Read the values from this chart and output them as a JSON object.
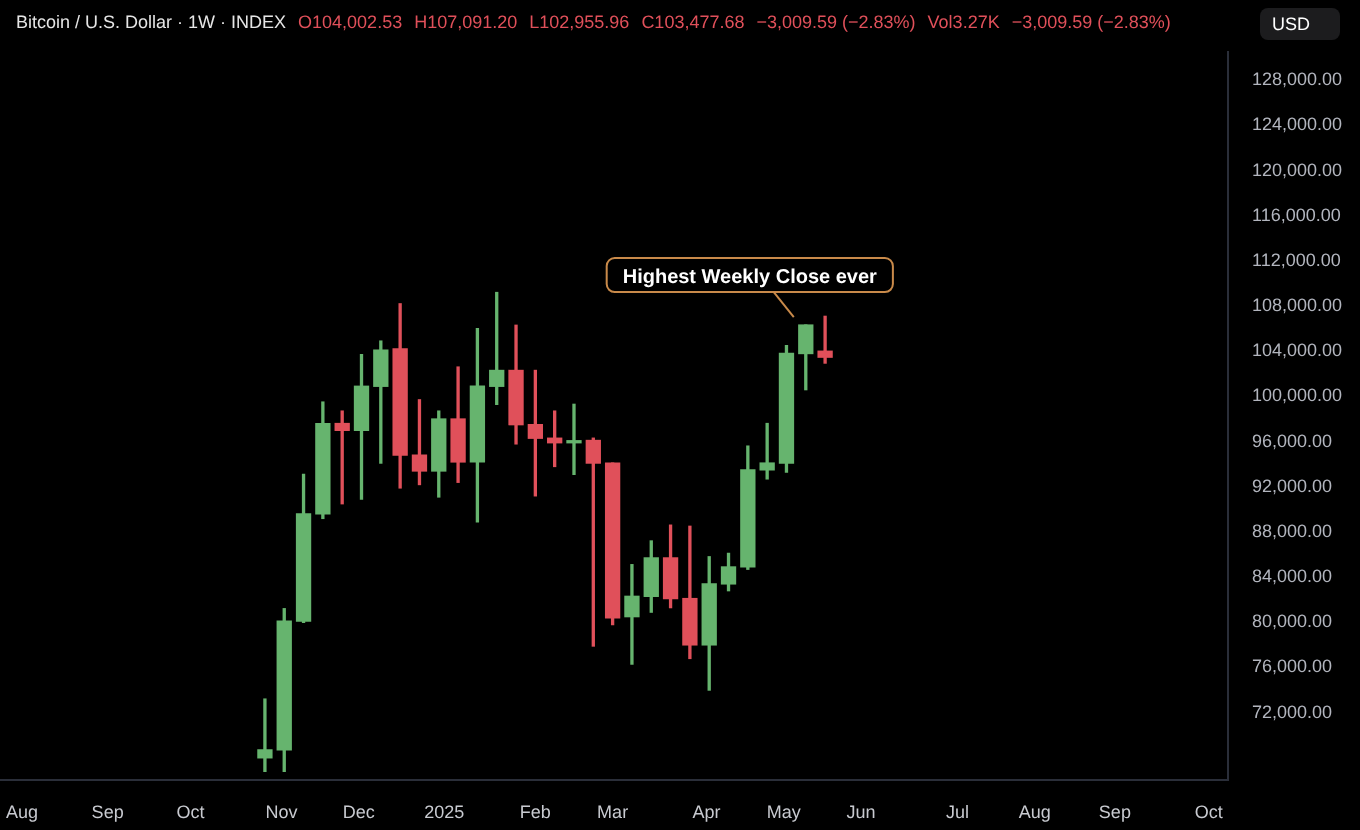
{
  "chart_data": {
    "type": "candlestick",
    "title": "Bitcoin / U.S. Dollar · 1W · INDEX",
    "ylabel": "USD",
    "annotations": [
      "O104,002.53",
      "H107,091.20",
      "L102,955.96",
      "C103,477.68",
      "−3,009.59 (−2.83%)",
      "Vol3.27K",
      "−3,009.59 (−2.83%)",
      {
        "text": "Highest Weekly Close ever",
        "x": "2025-05-12",
        "y": 106320
      }
    ],
    "x": [
      "2024-10-28",
      "2024-11-04",
      "2024-11-11",
      "2024-11-18",
      "2024-11-25",
      "2024-12-02",
      "2024-12-09",
      "2024-12-16",
      "2024-12-23",
      "2024-12-30",
      "2025-01-06",
      "2025-01-13",
      "2025-01-20",
      "2025-01-27",
      "2025-02-03",
      "2025-02-10",
      "2025-02-17",
      "2025-02-24",
      "2025-03-03",
      "2025-03-10",
      "2025-03-17",
      "2025-03-24",
      "2025-03-31",
      "2025-04-07",
      "2025-04-14",
      "2025-04-21",
      "2025-04-28",
      "2025-05-05",
      "2025-05-12",
      "2025-05-19"
    ],
    "ohlc": [
      [
        68000,
        73200,
        66800,
        68700
      ],
      [
        68700,
        81200,
        66800,
        80100
      ],
      [
        80100,
        93100,
        80000,
        89600
      ],
      [
        89600,
        99500,
        89200,
        97600
      ],
      [
        97600,
        98700,
        90500,
        97000
      ],
      [
        97000,
        103700,
        90900,
        100900
      ],
      [
        100900,
        104900,
        94100,
        104100
      ],
      [
        104200,
        108200,
        91900,
        94800
      ],
      [
        94800,
        99700,
        92200,
        93400
      ],
      [
        93400,
        98700,
        91100,
        98000
      ],
      [
        98000,
        102600,
        92400,
        94200
      ],
      [
        94200,
        106000,
        88900,
        100900
      ],
      [
        100900,
        109200,
        99300,
        102300
      ],
      [
        102300,
        106300,
        95800,
        97500
      ],
      [
        97500,
        102300,
        91200,
        96300
      ],
      [
        96300,
        98700,
        93800,
        95900
      ],
      [
        95900,
        99300,
        93100,
        96000
      ],
      [
        96100,
        96300,
        77900,
        94100
      ],
      [
        94100,
        94100,
        79800,
        80400
      ],
      [
        80500,
        85100,
        76300,
        82300
      ],
      [
        82300,
        87200,
        80900,
        85700
      ],
      [
        85700,
        88600,
        81300,
        82100
      ],
      [
        82100,
        88500,
        76800,
        78000
      ],
      [
        78000,
        85800,
        74000,
        83400
      ],
      [
        83400,
        86100,
        82800,
        84900
      ],
      [
        84900,
        95600,
        84700,
        93500
      ],
      [
        93500,
        97600,
        92700,
        94100
      ],
      [
        94100,
        104500,
        93300,
        103800
      ],
      [
        103800,
        106320,
        100600,
        106320
      ],
      [
        104002.53,
        107091.2,
        102955.96,
        103477.68
      ]
    ],
    "colors": [
      "#66b46e",
      "#66b46e",
      "#66b46e",
      "#66b46e",
      "#e0505a",
      "#66b46e",
      "#66b46e",
      "#e0505a",
      "#e0505a",
      "#66b46e",
      "#e0505a",
      "#66b46e",
      "#66b46e",
      "#e0505a",
      "#e0505a",
      "#e0505a",
      "#66b46e",
      "#e0505a",
      "#e0505a",
      "#66b46e",
      "#66b46e",
      "#e0505a",
      "#e0505a",
      "#66b46e",
      "#66b46e",
      "#66b46e",
      "#66b46e",
      "#66b46e",
      "#66b46e",
      "#e0505a"
    ],
    "xlim": [
      "2024-07-24",
      "2025-10-12"
    ],
    "xticks": [
      {
        "value": "2024-08-01",
        "label": "Aug"
      },
      {
        "value": "2024-09-01",
        "label": "Sep"
      },
      {
        "value": "2024-10-01",
        "label": "Oct"
      },
      {
        "value": "2024-11-03",
        "label": "Nov"
      },
      {
        "value": "2024-12-01",
        "label": "Dec"
      },
      {
        "value": "2025-01-01",
        "label": "2025"
      },
      {
        "value": "2025-02-03",
        "label": "Feb"
      },
      {
        "value": "2025-03-03",
        "label": "Mar"
      },
      {
        "value": "2025-04-06",
        "label": "Apr"
      },
      {
        "value": "2025-05-04",
        "label": "May"
      },
      {
        "value": "2025-06-01",
        "label": "Jun"
      },
      {
        "value": "2025-07-06",
        "label": "Jul"
      },
      {
        "value": "2025-08-03",
        "label": "Aug"
      },
      {
        "value": "2025-09-01",
        "label": "Sep"
      },
      {
        "value": "2025-10-05",
        "label": "Oct"
      }
    ],
    "ylim": [
      66000,
      130500
    ],
    "yticks": [
      {
        "value": 72000,
        "label": "72,000.00"
      },
      {
        "value": 76000,
        "label": "76,000.00"
      },
      {
        "value": 80000,
        "label": "80,000.00"
      },
      {
        "value": 84000,
        "label": "84,000.00"
      },
      {
        "value": 88000,
        "label": "88,000.00"
      },
      {
        "value": 92000,
        "label": "92,000.00"
      },
      {
        "value": 96000,
        "label": "96,000.00"
      },
      {
        "value": 100000,
        "label": "100,000.00"
      },
      {
        "value": 104000,
        "label": "104,000.00"
      },
      {
        "value": 108000,
        "label": "108,000.00"
      },
      {
        "value": 112000,
        "label": "112,000.00"
      },
      {
        "value": 116000,
        "label": "116,000.00"
      },
      {
        "value": 120000,
        "label": "120,000.00"
      },
      {
        "value": 124000,
        "label": "124,000.00"
      },
      {
        "value": 128000,
        "label": "128,000.00"
      }
    ]
  }
}
